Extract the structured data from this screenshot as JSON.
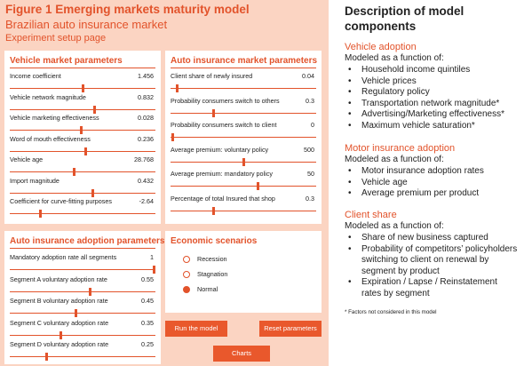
{
  "figure": {
    "title": "Figure 1  Emerging markets maturity model",
    "subtitle": "Brazilian auto insurance market",
    "page_label": "Experiment setup page"
  },
  "colors": {
    "accent": "#e2532b",
    "panel_bg": "#fbd4c2",
    "button_bg": "#e9582c"
  },
  "vehicle_market": {
    "title": "Vehicle market parameters",
    "rows": [
      {
        "label": "Income coefficient",
        "value": "1.456",
        "level": 0.5
      },
      {
        "label": "Vehicle network magnitude",
        "value": "0.832",
        "level": 0.58
      },
      {
        "label": "Vehicle marketing effectiveness",
        "value": "0.028",
        "level": 0.49
      },
      {
        "label": "Word of mouth effectiveness",
        "value": "0.236",
        "level": 0.52
      },
      {
        "label": "Vehicle age",
        "value": "28.768",
        "level": 0.44
      },
      {
        "label": "Import magnitude",
        "value": "0.432",
        "level": 0.57
      },
      {
        "label": "Coefficient for curve-fitting purposes",
        "value": "-2.64",
        "level": 0.21
      }
    ]
  },
  "auto_market": {
    "title": "Auto insurance market parameters",
    "rows": [
      {
        "label": "Client share of newly insured",
        "value": "0.04",
        "level": 0.04
      },
      {
        "label": "Probability consumers switch to others",
        "value": "0.3",
        "level": 0.29
      },
      {
        "label": "Probability consumers switch to client",
        "value": "0",
        "level": 0.01
      },
      {
        "label": "Average premium: voluntary policy",
        "value": "500",
        "level": 0.5
      },
      {
        "label": "Average premium: mandatory policy",
        "value": "50",
        "level": 0.6
      },
      {
        "label": "Percentage of total Insured that shop",
        "value": "0.3",
        "level": 0.29
      }
    ]
  },
  "adoption": {
    "title": "Auto insurance adoption parameters",
    "rows": [
      {
        "label": "Mandatory adoption rate all segments",
        "value": "1",
        "level": 0.99
      },
      {
        "label": "Segment A voluntary adoption rate",
        "value": "0.55",
        "level": 0.55
      },
      {
        "label": "Segment B voluntary adoption rate",
        "value": "0.45",
        "level": 0.45
      },
      {
        "label": "Segment C voluntary adoption rate",
        "value": "0.35",
        "level": 0.35
      },
      {
        "label": "Segment D voluntary adoption rate",
        "value": "0.25",
        "level": 0.25
      }
    ]
  },
  "economic": {
    "title": "Economic scenarios",
    "options": [
      {
        "label": "Recession",
        "selected": false
      },
      {
        "label": "Stagnation",
        "selected": false
      },
      {
        "label": "Normal",
        "selected": true
      }
    ]
  },
  "buttons": {
    "run": "Run the model",
    "reset": "Reset parameters",
    "charts": "Charts"
  },
  "description": {
    "title_line1": "Description of model",
    "title_line2": "components",
    "sections": [
      {
        "heading": "Vehicle adoption",
        "intro": "Modeled as a function of:",
        "items": [
          "Household income quintiles",
          "Vehicle prices",
          "Regulatory policy",
          "Transportation network magnitude*",
          "Advertising/Marketing effectiveness*",
          "Maximum vehicle saturation*"
        ]
      },
      {
        "heading": "Motor insurance adoption",
        "intro": "Modeled as a function of:",
        "items": [
          "Motor insurance adoption rates",
          "Vehicle age",
          "Average premium per product"
        ]
      },
      {
        "heading": "Client share",
        "intro": "Modeled as a function of:",
        "items": [
          "Share of new business captured",
          "Probability of competitors’ policyholders",
          "switching to client on renewal by",
          "segment by product",
          "Expiration / Lapse / Reinstatement",
          "rates by segment"
        ]
      }
    ],
    "bullet_char": "•",
    "footnote": "* Factors not considered in this model"
  }
}
